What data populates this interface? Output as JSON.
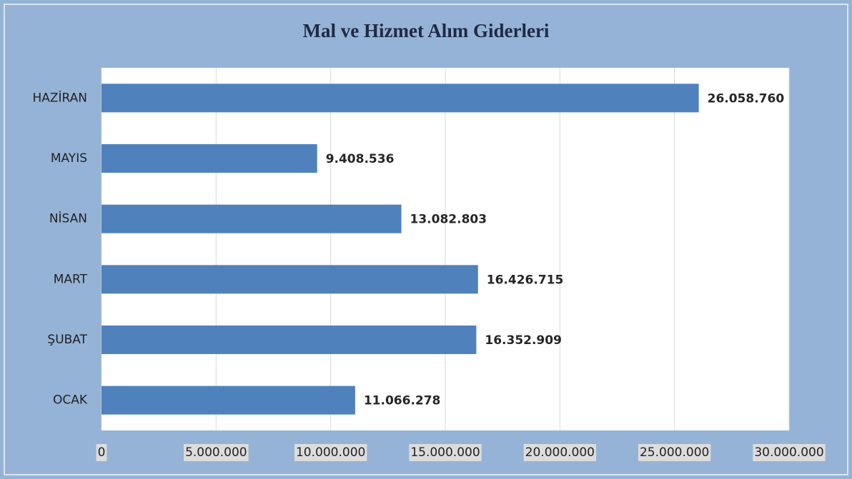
{
  "chart_data": {
    "type": "barh",
    "title": "Mal ve Hizmet Alım Giderleri",
    "categories": [
      "HAZİRAN",
      "MAYIS",
      "NİSAN",
      "MART",
      "ŞUBAT",
      "OCAK"
    ],
    "values": [
      26058760,
      9408536,
      13082803,
      16426715,
      16352909,
      11066278
    ],
    "value_labels": [
      "26.058.760",
      "9.408.536",
      "13.082.803",
      "16.426.715",
      "16.352.909",
      "11.066.278"
    ],
    "color": "#4f81bd",
    "xlim": [
      0,
      30000000
    ],
    "xticks": [
      0,
      {
        "value": 5000000,
        "label": "5.000.000"
      },
      {
        "value": 10000000,
        "label": "10.000.000"
      },
      {
        "value": 15000000,
        "label": "15.000.000"
      },
      {
        "value": 20000000,
        "label": "20.000.000"
      },
      {
        "value": 25000000,
        "label": "25.000.000"
      },
      {
        "value": 30000000,
        "label": "30.000.000"
      }
    ],
    "grid": true
  }
}
